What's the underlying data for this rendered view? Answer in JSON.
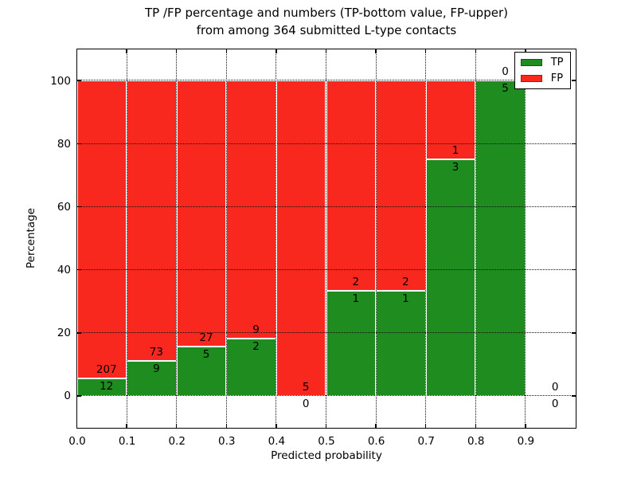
{
  "title": {
    "line1": "TP /FP percentage and numbers (TP-bottom value, FP-upper)",
    "line2": "from among 364 submitted L-type contacts"
  },
  "chart_data": {
    "type": "bar",
    "stacked": true,
    "title": "TP /FP percentage and numbers (TP-bottom value, FP-upper)\nfrom among 364 submitted L-type contacts",
    "xlabel": "Predicted probability",
    "ylabel": "Percentage",
    "xlim": [
      0.0,
      1.0
    ],
    "ylim": [
      -10,
      110
    ],
    "xticks": [
      "0.0",
      "0.1",
      "0.2",
      "0.3",
      "0.4",
      "0.5",
      "0.6",
      "0.7",
      "0.8",
      "0.9"
    ],
    "yticks": [
      0,
      20,
      40,
      60,
      80,
      100
    ],
    "bin_width": 0.1,
    "total_submitted": 364,
    "tp_color": "#1e8c1e",
    "fp_color": "#f8281e",
    "grid": true,
    "legend_position": "upper right",
    "legend": {
      "entries": [
        {
          "label": "TP",
          "color": "#1e8c1e"
        },
        {
          "label": "FP",
          "color": "#f8281e"
        }
      ]
    },
    "bins": [
      {
        "range": "0.0-0.1",
        "x0": 0.0,
        "tp_count": 12,
        "fp_count": 207,
        "tp_pct": 5.5,
        "fp_pct": 94.5,
        "has_bar": true
      },
      {
        "range": "0.1-0.2",
        "x0": 0.1,
        "tp_count": 9,
        "fp_count": 73,
        "tp_pct": 11.0,
        "fp_pct": 89.0,
        "has_bar": true
      },
      {
        "range": "0.2-0.3",
        "x0": 0.2,
        "tp_count": 5,
        "fp_count": 27,
        "tp_pct": 15.6,
        "fp_pct": 84.4,
        "has_bar": true
      },
      {
        "range": "0.3-0.4",
        "x0": 0.3,
        "tp_count": 2,
        "fp_count": 9,
        "tp_pct": 18.2,
        "fp_pct": 81.8,
        "has_bar": true
      },
      {
        "range": "0.4-0.5",
        "x0": 0.4,
        "tp_count": 0,
        "fp_count": 5,
        "tp_pct": 0.0,
        "fp_pct": 100.0,
        "has_bar": true
      },
      {
        "range": "0.5-0.6",
        "x0": 0.5,
        "tp_count": 1,
        "fp_count": 2,
        "tp_pct": 33.3,
        "fp_pct": 66.7,
        "has_bar": true
      },
      {
        "range": "0.6-0.7",
        "x0": 0.6,
        "tp_count": 1,
        "fp_count": 2,
        "tp_pct": 33.3,
        "fp_pct": 66.7,
        "has_bar": true
      },
      {
        "range": "0.7-0.8",
        "x0": 0.7,
        "tp_count": 3,
        "fp_count": 1,
        "tp_pct": 75.0,
        "fp_pct": 25.0,
        "has_bar": true
      },
      {
        "range": "0.8-0.9",
        "x0": 0.8,
        "tp_count": 5,
        "fp_count": 0,
        "tp_pct": 100.0,
        "fp_pct": 0.0,
        "has_bar": true
      },
      {
        "range": "0.9-1.0",
        "x0": 0.9,
        "tp_count": 0,
        "fp_count": 0,
        "tp_pct": 0.0,
        "fp_pct": 0.0,
        "has_bar": false
      }
    ]
  }
}
